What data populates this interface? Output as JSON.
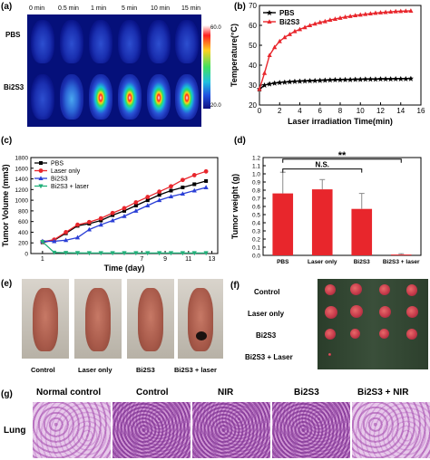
{
  "panels": {
    "a": "(a)",
    "b": "(b)",
    "c": "(c)",
    "d": "(d)",
    "e": "(e)",
    "f": "(f)",
    "g": "(g)"
  },
  "panel_a": {
    "time_labels": [
      "0 min",
      "0.5 min",
      "1 min",
      "5 min",
      "10 min",
      "15 min"
    ],
    "row_labels": [
      "PBS",
      "Bi2S3"
    ],
    "colorbar_max": "60.0",
    "colorbar_min": "20.0"
  },
  "panel_e": {
    "labels": [
      "Control",
      "Laser only",
      "Bi2S3",
      "Bi2S3 + laser"
    ]
  },
  "panel_f": {
    "labels": [
      "Control",
      "Laser only",
      "Bi2S3",
      "Bi2S3 + Laser"
    ]
  },
  "panel_g": {
    "headers": [
      "Normal control",
      "Control",
      "NIR",
      "Bi2S3",
      "Bi2S3 + NIR"
    ],
    "row_label": "Lung"
  },
  "colors": {
    "black": "#000000",
    "red": "#e8262c",
    "blue": "#2a3fd6",
    "green": "#22b07a",
    "bar_red": "#e8262c"
  },
  "chart_data": [
    {
      "panel": "b",
      "type": "line",
      "xlabel": "Laser irradiation Time(min)",
      "ylabel": "Temperature(°C)",
      "xlim": [
        0,
        16
      ],
      "ylim": [
        20,
        70
      ],
      "xticks": [
        "0",
        "2",
        "4",
        "6",
        "8",
        "10",
        "12",
        "14",
        "16"
      ],
      "yticks": [
        "20",
        "30",
        "40",
        "50",
        "60",
        "70"
      ],
      "legend_placement": "top-left",
      "series": [
        {
          "name": "PBS",
          "color": "#000000",
          "x": [
            0,
            0.5,
            1,
            1.5,
            2,
            2.5,
            3,
            3.5,
            4,
            4.5,
            5,
            5.5,
            6,
            6.5,
            7,
            7.5,
            8,
            8.5,
            9,
            9.5,
            10,
            10.5,
            11,
            11.5,
            12,
            12.5,
            13,
            13.5,
            14,
            14.5,
            15
          ],
          "y": [
            28,
            30,
            30.6,
            31,
            31.3,
            31.5,
            31.7,
            31.9,
            32,
            32.1,
            32.2,
            32.3,
            32.4,
            32.5,
            32.6,
            32.7,
            32.7,
            32.8,
            32.8,
            32.9,
            32.9,
            33,
            33,
            33,
            33.1,
            33.1,
            33.1,
            33.2,
            33.2,
            33.2,
            33.3
          ]
        },
        {
          "name": "Bi2S3",
          "color": "#e8262c",
          "x": [
            0,
            0.5,
            1,
            1.5,
            2,
            2.5,
            3,
            3.5,
            4,
            4.5,
            5,
            5.5,
            6,
            6.5,
            7,
            7.5,
            8,
            8.5,
            9,
            9.5,
            10,
            10.5,
            11,
            11.5,
            12,
            12.5,
            13,
            13.5,
            14,
            14.5,
            15
          ],
          "y": [
            28,
            36,
            45,
            49,
            52,
            54,
            55.5,
            57,
            58,
            59,
            60,
            60.8,
            61.5,
            62,
            62.7,
            63.2,
            63.7,
            64.2,
            64.6,
            65,
            65.3,
            65.6,
            65.9,
            66.2,
            66.4,
            66.6,
            66.8,
            67,
            67.1,
            67.2,
            67.3
          ]
        }
      ]
    },
    {
      "panel": "c",
      "type": "line",
      "xlabel": "Time (day)",
      "ylabel": "Tumor Volume (mm3)",
      "xlim": [
        0,
        16
      ],
      "ylim": [
        0,
        1800
      ],
      "xticks": [
        "1",
        "7",
        "9",
        "11",
        "13"
      ],
      "yticks": [
        "0",
        "200",
        "400",
        "600",
        "800",
        "1000",
        "1200",
        "1400",
        "1600",
        "1800"
      ],
      "legend_placement": "top-left",
      "series": [
        {
          "name": "PBS",
          "color": "#000000",
          "x": [
            1,
            2,
            3,
            4,
            5,
            6,
            7,
            8,
            9,
            10,
            11,
            12,
            13,
            14,
            15
          ],
          "y": [
            210,
            250,
            380,
            520,
            560,
            620,
            720,
            800,
            900,
            1000,
            1100,
            1180,
            1240,
            1300,
            1360
          ]
        },
        {
          "name": "Laser only",
          "color": "#e8262c",
          "x": [
            1,
            2,
            3,
            4,
            5,
            6,
            7,
            8,
            9,
            10,
            11,
            12,
            13,
            14,
            15
          ],
          "y": [
            220,
            260,
            400,
            540,
            590,
            660,
            760,
            850,
            960,
            1060,
            1160,
            1260,
            1380,
            1470,
            1540
          ]
        },
        {
          "name": "Bi2S3",
          "color": "#2a3fd6",
          "x": [
            1,
            2,
            3,
            4,
            5,
            6,
            7,
            8,
            9,
            10,
            11,
            12,
            13,
            14,
            15
          ],
          "y": [
            230,
            230,
            250,
            300,
            450,
            540,
            620,
            700,
            800,
            900,
            1000,
            1070,
            1120,
            1180,
            1240
          ]
        },
        {
          "name": "Bi2S3 + laser",
          "color": "#22b07a",
          "x": [
            1,
            2,
            3,
            4,
            5,
            6,
            7,
            8,
            9,
            10,
            11,
            12,
            13,
            14,
            15
          ],
          "y": [
            220,
            20,
            15,
            12,
            10,
            10,
            10,
            10,
            10,
            10,
            10,
            10,
            10,
            10,
            10
          ]
        }
      ]
    },
    {
      "panel": "d",
      "type": "bar",
      "ylabel": "Tumor weight (g)",
      "ylim": [
        0,
        1.2
      ],
      "yticks": [
        "0.0",
        "0.1",
        "0.2",
        "0.3",
        "0.4",
        "0.5",
        "0.6",
        "0.7",
        "0.8",
        "0.9",
        "1.0",
        "1.1",
        "1.2"
      ],
      "categories": [
        "PBS",
        "Laser only",
        "Bi2S3",
        "Bi2S3 + laser"
      ],
      "values": [
        0.76,
        0.81,
        0.57,
        0.01
      ],
      "errors": [
        0.26,
        0.12,
        0.19,
        0.01
      ],
      "annotations": [
        "N.S.",
        "**"
      ]
    }
  ]
}
